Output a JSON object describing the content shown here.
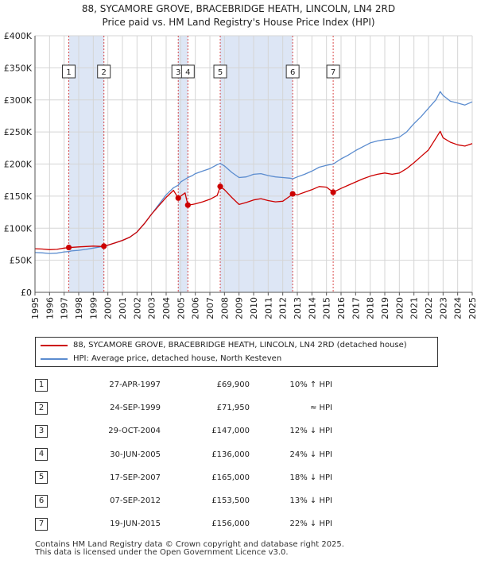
{
  "title": {
    "line1": "88, SYCAMORE GROVE, BRACEBRIDGE HEATH, LINCOLN, LN4 2RD",
    "line2": "Price paid vs. HM Land Registry's House Price Index (HPI)"
  },
  "colors": {
    "property": "#cc0000",
    "hpi": "#5b8ccf",
    "shade": "#dde6f5",
    "grid": "#d5d5d5",
    "marker_line": "#cc0000"
  },
  "legend": {
    "property_label": "88, SYCAMORE GROVE, BRACEBRIDGE HEATH, LINCOLN, LN4 2RD (detached house)",
    "hpi_label": "HPI: Average price, detached house, North Kesteven"
  },
  "sales": [
    {
      "num": "1",
      "date": "27-APR-1997",
      "price": "£69,900",
      "rel": "10% ↑ HPI"
    },
    {
      "num": "2",
      "date": "24-SEP-1999",
      "price": "£71,950",
      "rel": "≈ HPI"
    },
    {
      "num": "3",
      "date": "29-OCT-2004",
      "price": "£147,000",
      "rel": "12% ↓ HPI"
    },
    {
      "num": "4",
      "date": "30-JUN-2005",
      "price": "£136,000",
      "rel": "24% ↓ HPI"
    },
    {
      "num": "5",
      "date": "17-SEP-2007",
      "price": "£165,000",
      "rel": "18% ↓ HPI"
    },
    {
      "num": "6",
      "date": "07-SEP-2012",
      "price": "£153,500",
      "rel": "13% ↓ HPI"
    },
    {
      "num": "7",
      "date": "19-JUN-2015",
      "price": "£156,000",
      "rel": "22% ↓ HPI"
    }
  ],
  "footer": {
    "line1": "Contains HM Land Registry data © Crown copyright and database right 2025.",
    "line2": "This data is licensed under the Open Government Licence v3.0."
  },
  "chart_data": {
    "type": "line",
    "title": "88, SYCAMORE GROVE, BRACEBRIDGE HEATH, LINCOLN, LN4 2RD",
    "subtitle": "Price paid vs. HM Land Registry's House Price Index (HPI)",
    "xlabel": "",
    "ylabel": "",
    "xlim": [
      1995,
      2025
    ],
    "ylim": [
      0,
      400000
    ],
    "grid": true,
    "legend_position": "below",
    "y_ticks": [
      {
        "value": 0,
        "label": "£0"
      },
      {
        "value": 50000,
        "label": "£50K"
      },
      {
        "value": 100000,
        "label": "£100K"
      },
      {
        "value": 150000,
        "label": "£150K"
      },
      {
        "value": 200000,
        "label": "£200K"
      },
      {
        "value": 250000,
        "label": "£250K"
      },
      {
        "value": 300000,
        "label": "£300K"
      },
      {
        "value": 350000,
        "label": "£350K"
      },
      {
        "value": 400000,
        "label": "£400K"
      }
    ],
    "x_ticks": [
      "1995",
      "1996",
      "1997",
      "1998",
      "1999",
      "2000",
      "2001",
      "2002",
      "2003",
      "2004",
      "2005",
      "2006",
      "2007",
      "2008",
      "2009",
      "2010",
      "2011",
      "2012",
      "2013",
      "2014",
      "2015",
      "2016",
      "2017",
      "2018",
      "2019",
      "2020",
      "2021",
      "2022",
      "2023",
      "2024",
      "2025"
    ],
    "sale_markers": [
      {
        "num": "1",
        "x": 1997.32,
        "price": 69900
      },
      {
        "num": "2",
        "x": 1999.73,
        "price": 71950
      },
      {
        "num": "3",
        "x": 2004.83,
        "price": 147000
      },
      {
        "num": "4",
        "x": 2005.49,
        "price": 136000
      },
      {
        "num": "5",
        "x": 2007.71,
        "price": 165000
      },
      {
        "num": "6",
        "x": 2012.68,
        "price": 153500
      },
      {
        "num": "7",
        "x": 2015.46,
        "price": 156000
      }
    ],
    "shaded_ranges": [
      [
        1997.32,
        1999.73
      ],
      [
        2004.83,
        2005.49
      ],
      [
        2007.71,
        2012.68
      ]
    ],
    "series": [
      {
        "name": "HPI: Average price, detached house, North Kesteven",
        "points": [
          [
            1995.0,
            62000
          ],
          [
            1995.5,
            61500
          ],
          [
            1996.0,
            60500
          ],
          [
            1996.5,
            61000
          ],
          [
            1997.0,
            63000
          ],
          [
            1997.32,
            63500
          ],
          [
            1997.5,
            64500
          ],
          [
            1998.0,
            65500
          ],
          [
            1998.5,
            67000
          ],
          [
            1999.0,
            69000
          ],
          [
            1999.5,
            71000
          ],
          [
            1999.73,
            72000
          ],
          [
            2000.0,
            73500
          ],
          [
            2000.5,
            77000
          ],
          [
            2001.0,
            81000
          ],
          [
            2001.5,
            86000
          ],
          [
            2002.0,
            94000
          ],
          [
            2002.5,
            107000
          ],
          [
            2003.0,
            122000
          ],
          [
            2003.5,
            137000
          ],
          [
            2004.0,
            152000
          ],
          [
            2004.5,
            163000
          ],
          [
            2004.83,
            167000
          ],
          [
            2005.0,
            172000
          ],
          [
            2005.49,
            179000
          ],
          [
            2005.8,
            182000
          ],
          [
            2006.0,
            185000
          ],
          [
            2006.5,
            189000
          ],
          [
            2007.0,
            193000
          ],
          [
            2007.5,
            199000
          ],
          [
            2007.71,
            201000
          ],
          [
            2008.0,
            197000
          ],
          [
            2008.5,
            187000
          ],
          [
            2009.0,
            179000
          ],
          [
            2009.5,
            180000
          ],
          [
            2010.0,
            184000
          ],
          [
            2010.5,
            185000
          ],
          [
            2011.0,
            182000
          ],
          [
            2011.5,
            180000
          ],
          [
            2012.0,
            179000
          ],
          [
            2012.5,
            178000
          ],
          [
            2012.68,
            177000
          ],
          [
            2013.0,
            180000
          ],
          [
            2013.5,
            184000
          ],
          [
            2014.0,
            189000
          ],
          [
            2014.5,
            195000
          ],
          [
            2015.0,
            198000
          ],
          [
            2015.46,
            200000
          ],
          [
            2016.0,
            208000
          ],
          [
            2016.5,
            214000
          ],
          [
            2017.0,
            221000
          ],
          [
            2017.5,
            227000
          ],
          [
            2018.0,
            233000
          ],
          [
            2018.5,
            236000
          ],
          [
            2019.0,
            238000
          ],
          [
            2019.5,
            239000
          ],
          [
            2020.0,
            242000
          ],
          [
            2020.5,
            250000
          ],
          [
            2021.0,
            263000
          ],
          [
            2021.5,
            274000
          ],
          [
            2022.0,
            287000
          ],
          [
            2022.5,
            300000
          ],
          [
            2022.8,
            313000
          ],
          [
            2023.0,
            307000
          ],
          [
            2023.5,
            298000
          ],
          [
            2024.0,
            295000
          ],
          [
            2024.5,
            292000
          ],
          [
            2025.0,
            297000
          ]
        ]
      },
      {
        "name": "88, SYCAMORE GROVE, BRACEBRIDGE HEATH, LINCOLN, LN4 2RD (detached house)",
        "points": [
          [
            1995.0,
            68000
          ],
          [
            1995.5,
            67500
          ],
          [
            1996.0,
            66500
          ],
          [
            1996.5,
            67000
          ],
          [
            1997.0,
            69000
          ],
          [
            1997.32,
            69900
          ],
          [
            1997.7,
            70300
          ],
          [
            1998.0,
            70800
          ],
          [
            1998.5,
            71400
          ],
          [
            1999.0,
            72100
          ],
          [
            1999.5,
            71600
          ],
          [
            1999.73,
            71950
          ],
          [
            2000.0,
            73500
          ],
          [
            2000.5,
            77000
          ],
          [
            2001.0,
            81000
          ],
          [
            2001.5,
            86000
          ],
          [
            2002.0,
            94000
          ],
          [
            2002.5,
            107000
          ],
          [
            2003.0,
            122000
          ],
          [
            2003.5,
            135000
          ],
          [
            2004.0,
            148000
          ],
          [
            2004.5,
            159000
          ],
          [
            2004.83,
            147000
          ],
          [
            2005.0,
            150000
          ],
          [
            2005.3,
            155000
          ],
          [
            2005.49,
            136000
          ],
          [
            2005.8,
            137000
          ],
          [
            2006.0,
            138000
          ],
          [
            2006.5,
            141000
          ],
          [
            2007.0,
            145000
          ],
          [
            2007.5,
            151000
          ],
          [
            2007.71,
            165000
          ],
          [
            2008.0,
            160000
          ],
          [
            2008.5,
            148000
          ],
          [
            2009.0,
            137000
          ],
          [
            2009.5,
            140000
          ],
          [
            2010.0,
            144000
          ],
          [
            2010.5,
            146000
          ],
          [
            2011.0,
            143000
          ],
          [
            2011.5,
            141000
          ],
          [
            2012.0,
            142000
          ],
          [
            2012.5,
            150000
          ],
          [
            2012.68,
            153500
          ],
          [
            2013.0,
            152000
          ],
          [
            2013.5,
            156000
          ],
          [
            2014.0,
            160000
          ],
          [
            2014.5,
            165000
          ],
          [
            2015.0,
            164000
          ],
          [
            2015.46,
            156000
          ],
          [
            2016.0,
            162000
          ],
          [
            2016.5,
            167000
          ],
          [
            2017.0,
            172000
          ],
          [
            2017.5,
            177000
          ],
          [
            2018.0,
            181000
          ],
          [
            2018.5,
            184000
          ],
          [
            2019.0,
            186000
          ],
          [
            2019.5,
            184000
          ],
          [
            2020.0,
            186000
          ],
          [
            2020.5,
            193000
          ],
          [
            2021.0,
            202000
          ],
          [
            2021.5,
            212000
          ],
          [
            2022.0,
            222000
          ],
          [
            2022.5,
            240000
          ],
          [
            2022.8,
            251000
          ],
          [
            2023.0,
            241000
          ],
          [
            2023.5,
            234000
          ],
          [
            2024.0,
            230000
          ],
          [
            2024.5,
            228000
          ],
          [
            2025.0,
            232000
          ]
        ]
      }
    ]
  }
}
